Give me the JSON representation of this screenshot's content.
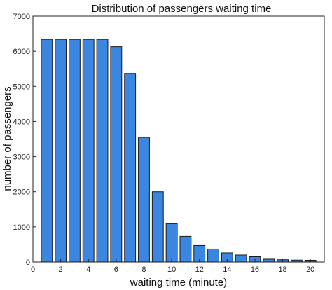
{
  "chart_data": {
    "type": "bar",
    "title": "Distribution of passengers waiting time",
    "xlabel": "waiting time (minute)",
    "ylabel": "number of passengers",
    "xlim": [
      0,
      21
    ],
    "ylim": [
      0,
      7000
    ],
    "x": [
      1,
      2,
      3,
      4,
      5,
      6,
      7,
      8,
      9,
      10,
      11,
      12,
      13,
      14,
      15,
      16,
      17,
      18,
      19,
      20
    ],
    "values": [
      6340,
      6340,
      6340,
      6340,
      6340,
      6130,
      5370,
      3550,
      2000,
      1090,
      730,
      470,
      370,
      260,
      200,
      150,
      80,
      65,
      55,
      50
    ],
    "x_ticks": [
      0,
      2,
      4,
      6,
      8,
      10,
      12,
      14,
      16,
      18,
      20
    ],
    "y_ticks": [
      0,
      1000,
      2000,
      3000,
      4000,
      5000,
      6000,
      7000
    ],
    "bar_color": "#3a86e0",
    "grid": false,
    "legend": "none"
  }
}
